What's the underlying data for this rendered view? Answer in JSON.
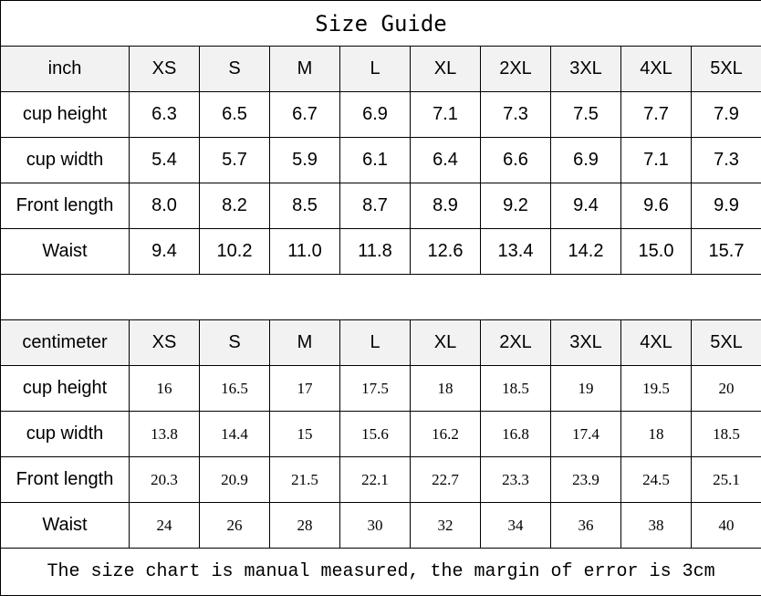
{
  "title": "Size Guide",
  "sizes": [
    "XS",
    "S",
    "M",
    "L",
    "XL",
    "2XL",
    "3XL",
    "4XL",
    "5XL"
  ],
  "inch": {
    "unit_label": "inch",
    "rows": [
      {
        "label": "cup height",
        "values": [
          "6.3",
          "6.5",
          "6.7",
          "6.9",
          "7.1",
          "7.3",
          "7.5",
          "7.7",
          "7.9"
        ]
      },
      {
        "label": "cup width",
        "values": [
          "5.4",
          "5.7",
          "5.9",
          "6.1",
          "6.4",
          "6.6",
          "6.9",
          "7.1",
          "7.3"
        ]
      },
      {
        "label": "Front length",
        "values": [
          "8.0",
          "8.2",
          "8.5",
          "8.7",
          "8.9",
          "9.2",
          "9.4",
          "9.6",
          "9.9"
        ]
      },
      {
        "label": "Waist",
        "values": [
          "9.4",
          "10.2",
          "11.0",
          "11.8",
          "12.6",
          "13.4",
          "14.2",
          "15.0",
          "15.7"
        ]
      }
    ]
  },
  "centimeter": {
    "unit_label": "centimeter",
    "rows": [
      {
        "label": "cup height",
        "values": [
          "16",
          "16.5",
          "17",
          "17.5",
          "18",
          "18.5",
          "19",
          "19.5",
          "20"
        ]
      },
      {
        "label": "cup width",
        "values": [
          "13.8",
          "14.4",
          "15",
          "15.6",
          "16.2",
          "16.8",
          "17.4",
          "18",
          "18.5"
        ]
      },
      {
        "label": "Front length",
        "values": [
          "20.3",
          "20.9",
          "21.5",
          "22.1",
          "22.7",
          "23.3",
          "23.9",
          "24.5",
          "25.1"
        ]
      },
      {
        "label": "Waist",
        "values": [
          "24",
          "26",
          "28",
          "30",
          "32",
          "34",
          "36",
          "38",
          "40"
        ]
      }
    ]
  },
  "footer": "The size chart is manual measured, the margin of error is 3cm"
}
